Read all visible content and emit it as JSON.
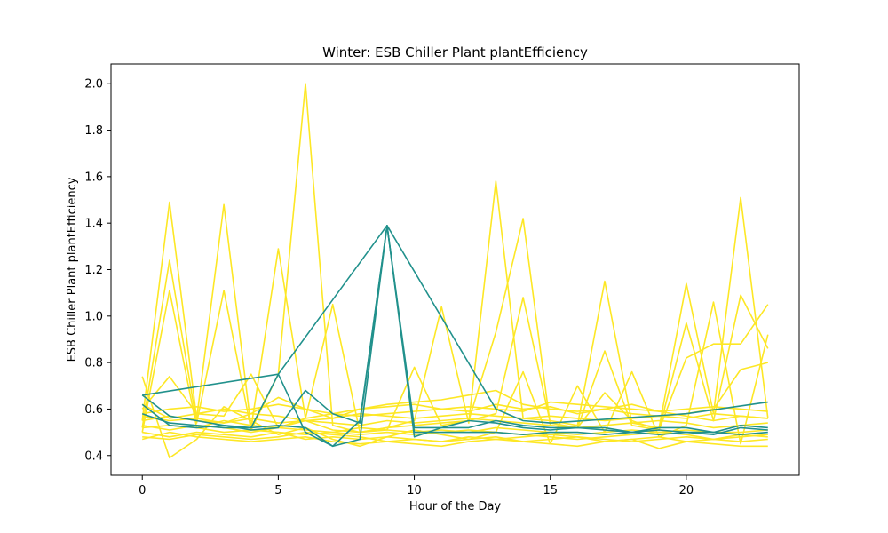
{
  "chart_data": {
    "type": "line",
    "title": "Winter: ESB Chiller Plant plantEfficiency",
    "xlabel": "Hour of the Day",
    "ylabel": "ESB Chiller Plant plantEfficiency",
    "xlim": [
      -1.15,
      24.15
    ],
    "ylim": [
      0.315,
      2.085
    ],
    "xticks": [
      0,
      5,
      10,
      15,
      20
    ],
    "yticks": [
      0.4,
      0.6,
      0.8,
      1.0,
      1.2,
      1.4,
      1.6,
      1.8,
      2.0
    ],
    "ytick_labels": [
      "0.4",
      "0.6",
      "0.8",
      "1.0",
      "1.2",
      "1.4",
      "1.6",
      "1.8",
      "2.0"
    ],
    "grid": false,
    "colors": {
      "teal": "#21918c",
      "yellow": "#fde725"
    },
    "series": [
      {
        "color": "#fde725",
        "x": [
          0,
          1,
          2,
          3,
          4,
          5,
          6,
          7,
          8,
          9,
          10,
          11,
          12,
          13,
          14,
          15,
          16,
          17,
          18,
          19,
          20,
          21,
          22,
          23
        ],
        "y": [
          0.55,
          1.49,
          0.56,
          1.48,
          0.52,
          1.29,
          0.56,
          1.05,
          0.5,
          0.52,
          0.55,
          1.04,
          0.54,
          1.58,
          0.56,
          0.55,
          0.53,
          1.15,
          0.54,
          0.52,
          1.14,
          0.58,
          1.51,
          0.56
        ]
      },
      {
        "color": "#fde725",
        "x": [
          0,
          1,
          2,
          3,
          4,
          5,
          6,
          7,
          8,
          9,
          10,
          11,
          12,
          13,
          14,
          15,
          16,
          17,
          18,
          19,
          20,
          21,
          22,
          23
        ],
        "y": [
          0.52,
          1.24,
          0.54,
          1.11,
          0.51,
          0.75,
          2.0,
          0.53,
          0.5,
          0.51,
          0.78,
          0.53,
          0.55,
          0.93,
          1.42,
          0.53,
          0.52,
          0.85,
          0.53,
          0.51,
          0.97,
          0.55,
          1.09,
          0.86
        ]
      },
      {
        "color": "#fde725",
        "x": [
          0,
          1,
          2,
          3,
          4,
          5,
          6,
          7,
          8,
          9,
          10,
          11,
          12,
          13,
          14,
          15,
          16,
          17,
          18,
          19,
          20,
          21,
          22,
          23
        ],
        "y": [
          0.5,
          1.11,
          0.52,
          0.55,
          0.53,
          0.52,
          0.55,
          0.51,
          0.5,
          0.52,
          0.53,
          0.54,
          0.55,
          0.58,
          1.08,
          0.54,
          0.52,
          0.67,
          0.55,
          0.51,
          0.82,
          0.88,
          0.88,
          1.05
        ]
      },
      {
        "color": "#fde725",
        "x": [
          0,
          1,
          2,
          3,
          4,
          5,
          6,
          7,
          8,
          9,
          10,
          11,
          12,
          13,
          14,
          15,
          16,
          17,
          18,
          19,
          20,
          21,
          22,
          23
        ],
        "y": [
          0.74,
          0.39,
          0.47,
          0.61,
          0.55,
          0.49,
          0.52,
          0.47,
          0.44,
          0.48,
          0.51,
          0.49,
          0.47,
          0.5,
          0.76,
          0.45,
          0.7,
          0.5,
          0.76,
          0.48,
          0.53,
          1.06,
          0.45,
          0.92
        ]
      },
      {
        "color": "#fde725",
        "x": [
          0,
          1,
          2,
          3,
          4,
          5,
          6,
          7,
          8,
          9,
          10,
          11,
          12,
          13,
          14,
          15,
          16,
          17,
          18,
          19,
          20,
          21,
          22,
          23
        ],
        "y": [
          0.6,
          0.74,
          0.58,
          0.57,
          0.75,
          0.52,
          0.56,
          0.58,
          0.6,
          0.62,
          0.63,
          0.64,
          0.66,
          0.68,
          0.62,
          0.6,
          0.59,
          0.6,
          0.58,
          0.57,
          0.58,
          0.6,
          0.77,
          0.8
        ]
      },
      {
        "color": "#fde725",
        "x": [
          0,
          1,
          2,
          3,
          4,
          5,
          6,
          7,
          8,
          9,
          10,
          11,
          12,
          13,
          14,
          15,
          16,
          17,
          18,
          19,
          20,
          21,
          22,
          23
        ],
        "y": [
          0.47,
          0.5,
          0.48,
          0.47,
          0.46,
          0.47,
          0.48,
          0.46,
          0.45,
          0.46,
          0.47,
          0.46,
          0.47,
          0.48,
          0.46,
          0.45,
          0.44,
          0.46,
          0.47,
          0.43,
          0.46,
          0.45,
          0.44,
          0.44
        ]
      },
      {
        "color": "#fde725",
        "x": [
          0,
          1,
          2,
          3,
          4,
          5,
          6,
          7,
          8,
          9,
          10,
          11,
          12,
          13,
          14,
          15,
          16,
          17,
          18,
          19,
          20,
          21,
          22,
          23
        ],
        "y": [
          0.52,
          0.53,
          0.52,
          0.5,
          0.51,
          0.5,
          0.49,
          0.5,
          0.49,
          0.5,
          0.49,
          0.5,
          0.51,
          0.5,
          0.49,
          0.48,
          0.47,
          0.48,
          0.49,
          0.5,
          0.49,
          0.47,
          0.48,
          0.49
        ]
      },
      {
        "color": "#fde725",
        "x": [
          0,
          1,
          2,
          3,
          4,
          5,
          6,
          7,
          8,
          9,
          10,
          11,
          12,
          13,
          14,
          15,
          16,
          17,
          18,
          19,
          20,
          21,
          22,
          23
        ],
        "y": [
          0.55,
          0.57,
          0.55,
          0.54,
          0.56,
          0.54,
          0.55,
          0.54,
          0.53,
          0.55,
          0.54,
          0.55,
          0.56,
          0.55,
          0.54,
          0.53,
          0.52,
          0.53,
          0.54,
          0.55,
          0.54,
          0.52,
          0.53,
          0.54
        ]
      },
      {
        "color": "#fde725",
        "x": [
          0,
          1,
          2,
          3,
          4,
          5,
          6,
          7,
          8,
          9,
          10,
          11,
          12,
          13,
          14,
          15,
          16,
          17,
          18,
          19,
          20,
          21,
          22,
          23
        ],
        "y": [
          0.58,
          0.6,
          0.61,
          0.59,
          0.6,
          0.62,
          0.6,
          0.58,
          0.57,
          0.58,
          0.59,
          0.6,
          0.61,
          0.6,
          0.59,
          0.63,
          0.62,
          0.61,
          0.6,
          0.59,
          0.6,
          0.61,
          0.6,
          0.59
        ]
      },
      {
        "color": "#fde725",
        "x": [
          0,
          1,
          2,
          3,
          4,
          5,
          6,
          7,
          8,
          9,
          10,
          11,
          12,
          13,
          14,
          15,
          16,
          17,
          18,
          19,
          20,
          21,
          22,
          23
        ],
        "y": [
          0.5,
          0.48,
          0.5,
          0.49,
          0.48,
          0.5,
          0.47,
          0.48,
          0.47,
          0.48,
          0.47,
          0.46,
          0.48,
          0.47,
          0.46,
          0.47,
          0.48,
          0.47,
          0.46,
          0.47,
          0.48,
          0.47,
          0.49,
          0.48
        ]
      },
      {
        "color": "#fde725",
        "x": [
          0,
          1,
          2,
          3,
          4,
          5,
          6,
          7,
          8,
          9,
          10,
          11,
          12,
          13,
          14,
          15,
          16,
          17,
          18,
          19,
          20,
          21,
          22,
          23
        ],
        "y": [
          0.62,
          0.56,
          0.58,
          0.6,
          0.58,
          0.65,
          0.6,
          0.56,
          0.6,
          0.61,
          0.62,
          0.6,
          0.59,
          0.62,
          0.6,
          0.61,
          0.58,
          0.6,
          0.62,
          0.59,
          0.57,
          0.55,
          0.57,
          0.56
        ]
      },
      {
        "color": "#fde725",
        "x": [
          0,
          1,
          2,
          3,
          4,
          5,
          6,
          7,
          8,
          9,
          10,
          11,
          12,
          13,
          14,
          15,
          16,
          17,
          18,
          19,
          20,
          21,
          22,
          23
        ],
        "y": [
          0.53,
          0.51,
          0.53,
          0.52,
          0.5,
          0.52,
          0.51,
          0.5,
          0.52,
          0.51,
          0.5,
          0.51,
          0.5,
          0.52,
          0.51,
          0.5,
          0.49,
          0.5,
          0.51,
          0.5,
          0.51,
          0.5,
          0.5,
          0.51
        ]
      },
      {
        "color": "#fde725",
        "x": [
          0,
          1,
          2,
          3,
          4,
          5,
          6,
          7,
          8,
          9,
          10,
          11,
          12,
          13,
          14,
          15,
          16,
          17,
          18,
          19,
          20,
          21,
          22,
          23
        ],
        "y": [
          0.48,
          0.47,
          0.49,
          0.48,
          0.47,
          0.48,
          0.5,
          0.49,
          0.48,
          0.46,
          0.45,
          0.44,
          0.46,
          0.47,
          0.48,
          0.49,
          0.48,
          0.46,
          0.47,
          0.48,
          0.46,
          0.47,
          0.46,
          0.47
        ]
      },
      {
        "color": "#fde725",
        "x": [
          0,
          1,
          2,
          3,
          4,
          5,
          6,
          7,
          8,
          9,
          10,
          11,
          12,
          13,
          14,
          15,
          16,
          17,
          18,
          19,
          20,
          21,
          22,
          23
        ],
        "y": [
          0.57,
          0.55,
          0.56,
          0.54,
          0.58,
          0.57,
          0.55,
          0.56,
          0.58,
          0.57,
          0.56,
          0.57,
          0.58,
          0.57,
          0.56,
          0.57,
          0.56,
          0.55,
          0.56,
          0.57,
          0.56,
          0.58,
          0.57,
          0.56
        ]
      },
      {
        "color": "#21918c",
        "x": [
          0,
          5,
          9,
          13,
          14,
          15,
          20,
          23
        ],
        "y": [
          0.66,
          0.75,
          1.39,
          0.6,
          0.55,
          0.54,
          0.58,
          0.63
        ]
      },
      {
        "color": "#21918c",
        "x": [
          0,
          1,
          2,
          3,
          4,
          5,
          6,
          7,
          8,
          9,
          10,
          11,
          12,
          13,
          14,
          15,
          16,
          17,
          18,
          19,
          20,
          21,
          22,
          23
        ],
        "y": [
          0.66,
          0.57,
          0.55,
          0.53,
          0.52,
          0.75,
          0.5,
          0.44,
          0.55,
          1.39,
          0.52,
          0.52,
          0.52,
          0.55,
          0.53,
          0.52,
          0.52,
          0.52,
          0.5,
          0.52,
          0.52,
          0.5,
          0.53,
          0.52
        ]
      },
      {
        "color": "#21918c",
        "x": [
          0,
          1,
          2,
          3,
          4,
          5,
          6,
          7,
          8,
          9,
          10,
          11,
          12,
          13,
          14,
          15,
          16,
          17,
          18,
          19,
          20,
          21,
          22,
          23
        ],
        "y": [
          0.62,
          0.53,
          0.52,
          0.53,
          0.51,
          0.52,
          0.68,
          0.58,
          0.54,
          1.39,
          0.48,
          0.52,
          0.55,
          0.54,
          0.52,
          0.51,
          0.52,
          0.51,
          0.5,
          0.51,
          0.5,
          0.49,
          0.52,
          0.51
        ]
      },
      {
        "color": "#21918c",
        "x": [
          0,
          1,
          2,
          3,
          4,
          5,
          6,
          7,
          8,
          9,
          10,
          11,
          12,
          13,
          14,
          15,
          16,
          17,
          18,
          19,
          20,
          21,
          22,
          23
        ],
        "y": [
          0.58,
          0.54,
          0.53,
          0.52,
          0.52,
          0.53,
          0.52,
          0.44,
          0.47,
          1.39,
          0.5,
          0.5,
          0.5,
          0.5,
          0.49,
          0.5,
          0.5,
          0.49,
          0.5,
          0.49,
          0.5,
          0.5,
          0.49,
          0.5
        ]
      }
    ]
  }
}
